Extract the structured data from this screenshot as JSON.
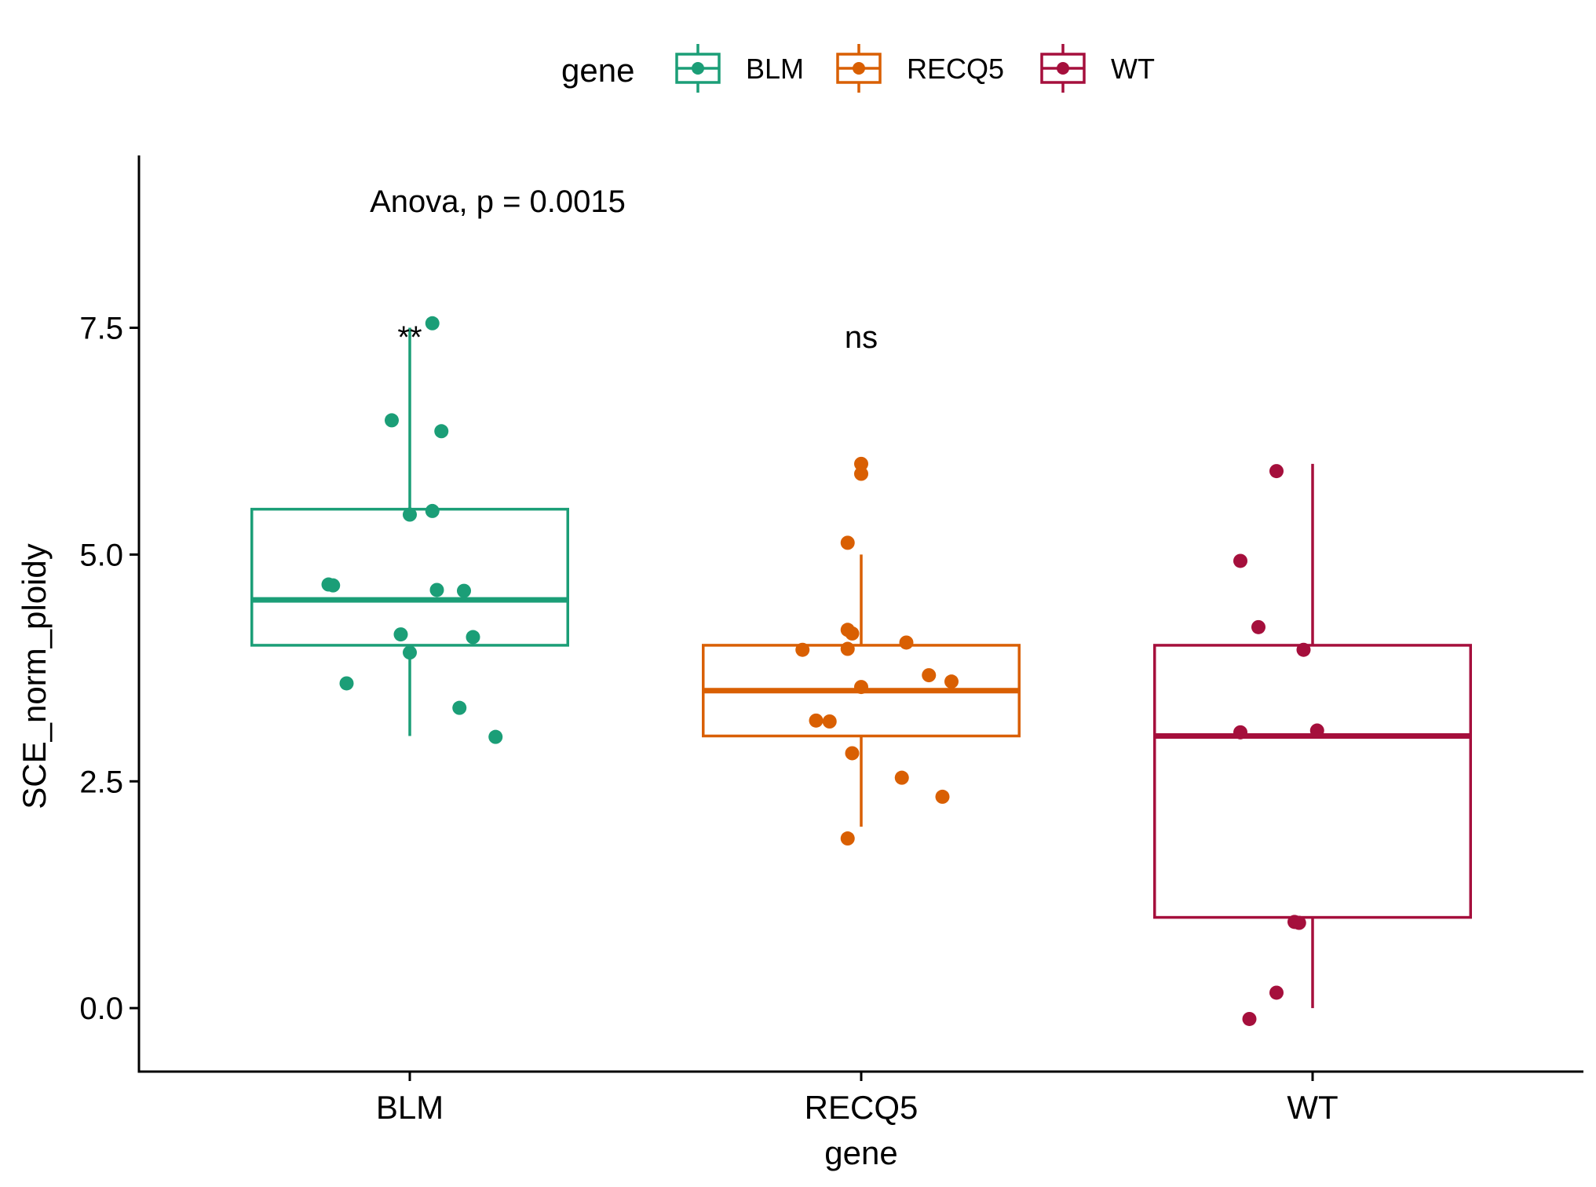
{
  "chart_data": {
    "type": "boxplot",
    "title": "",
    "xlabel": "gene",
    "ylabel": "SCE_norm_ploidy",
    "ylim": [
      -0.7,
      9.4
    ],
    "yticks": [
      0.0,
      2.5,
      5.0,
      7.5
    ],
    "ytick_labels": [
      "0.0",
      "2.5",
      "5.0",
      "7.5"
    ],
    "categories": [
      "BLM",
      "RECQ5",
      "WT"
    ],
    "legend": {
      "title": "gene",
      "position": "top",
      "entries": [
        "BLM",
        "RECQ5",
        "WT"
      ]
    },
    "annotations": {
      "anova_text": "Anova, p = 0.0015",
      "anova_x": "BLM",
      "anova_y": 8.9,
      "significance": [
        {
          "category": "BLM",
          "label": "**",
          "y": 7.4
        },
        {
          "category": "RECQ5",
          "label": "ns",
          "y": 7.4
        }
      ]
    },
    "series": [
      {
        "name": "BLM",
        "color": "#1B9E77",
        "box": {
          "lower_whisker": 3.0,
          "q1": 4.0,
          "median": 4.5,
          "q3": 5.5,
          "upper_whisker": 7.5
        },
        "points": [
          {
            "dx": 0.05,
            "y": 7.55
          },
          {
            "dx": -0.04,
            "y": 6.48
          },
          {
            "dx": 0.07,
            "y": 6.36
          },
          {
            "dx": 0.05,
            "y": 5.48
          },
          {
            "dx": 0.0,
            "y": 5.44
          },
          {
            "dx": -0.18,
            "y": 4.67
          },
          {
            "dx": -0.17,
            "y": 4.66
          },
          {
            "dx": 0.06,
            "y": 4.61
          },
          {
            "dx": 0.12,
            "y": 4.6
          },
          {
            "dx": -0.02,
            "y": 4.12
          },
          {
            "dx": 0.14,
            "y": 4.09
          },
          {
            "dx": 0.0,
            "y": 3.92
          },
          {
            "dx": -0.14,
            "y": 3.58
          },
          {
            "dx": 0.11,
            "y": 3.31
          },
          {
            "dx": 0.19,
            "y": 2.99
          }
        ]
      },
      {
        "name": "RECQ5",
        "color": "#D95F02",
        "box": {
          "lower_whisker": 2.0,
          "q1": 3.0,
          "median": 3.5,
          "q3": 4.0,
          "upper_whisker": 5.0
        },
        "points": [
          {
            "dx": 0.0,
            "y": 6.0
          },
          {
            "dx": 0.0,
            "y": 5.89
          },
          {
            "dx": -0.03,
            "y": 5.13
          },
          {
            "dx": -0.03,
            "y": 4.17
          },
          {
            "dx": -0.02,
            "y": 4.13
          },
          {
            "dx": 0.1,
            "y": 4.03
          },
          {
            "dx": -0.13,
            "y": 3.95
          },
          {
            "dx": -0.03,
            "y": 3.96
          },
          {
            "dx": 0.15,
            "y": 3.67
          },
          {
            "dx": 0.2,
            "y": 3.6
          },
          {
            "dx": 0.0,
            "y": 3.54
          },
          {
            "dx": -0.1,
            "y": 3.17
          },
          {
            "dx": -0.07,
            "y": 3.16
          },
          {
            "dx": -0.02,
            "y": 2.81
          },
          {
            "dx": 0.09,
            "y": 2.54
          },
          {
            "dx": 0.18,
            "y": 2.33
          },
          {
            "dx": -0.03,
            "y": 1.87
          }
        ]
      },
      {
        "name": "WT",
        "color": "#A50F3C",
        "box": {
          "lower_whisker": 0.0,
          "q1": 1.0,
          "median": 3.0,
          "q3": 4.0,
          "upper_whisker": 6.0
        },
        "points": [
          {
            "dx": -0.08,
            "y": 5.92
          },
          {
            "dx": -0.16,
            "y": 4.93
          },
          {
            "dx": -0.12,
            "y": 4.2
          },
          {
            "dx": -0.02,
            "y": 3.95
          },
          {
            "dx": -0.16,
            "y": 3.04
          },
          {
            "dx": 0.01,
            "y": 3.06
          },
          {
            "dx": -0.04,
            "y": 0.95
          },
          {
            "dx": -0.03,
            "y": 0.94
          },
          {
            "dx": -0.08,
            "y": 0.17
          },
          {
            "dx": -0.14,
            "y": -0.12
          }
        ]
      }
    ]
  }
}
